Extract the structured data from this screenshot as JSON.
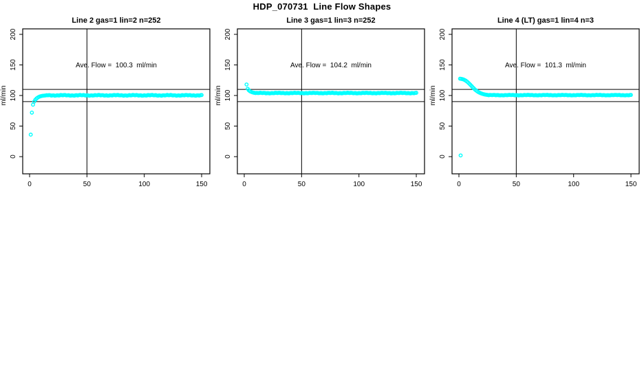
{
  "page": {
    "title": "HDP_070731  Line Flow Shapes",
    "background": "#FFFFFF",
    "text_color": "#000000"
  },
  "chart_data": [
    {
      "type": "scatter",
      "title": "Line 2 gas=1 lin=2 n=252",
      "line": 2,
      "gas": 1,
      "lin": 2,
      "n": 252,
      "ave_flow": 100.3,
      "annotation": "Ave. Flow =  100.3  ml/min",
      "ylabel": "ml/min",
      "xticks": [
        0,
        50,
        100,
        150
      ],
      "yticks": [
        0,
        50,
        100,
        150,
        200
      ],
      "xlim": [
        -6,
        157
      ],
      "ylim": [
        -28,
        209
      ],
      "ref_lines_y": [
        90,
        110
      ],
      "ref_line_x": 50,
      "marker_color": "#00FFFF",
      "transient": [
        [
          1,
          36
        ],
        [
          2,
          72
        ],
        [
          3,
          85
        ],
        [
          4,
          90
        ],
        [
          5,
          93
        ],
        [
          6,
          95
        ],
        [
          7,
          96.5
        ],
        [
          8,
          97.6
        ],
        [
          9,
          98.4
        ],
        [
          10,
          99
        ],
        [
          11,
          99.4
        ],
        [
          12,
          99.7
        ],
        [
          13,
          99.9
        ],
        [
          14,
          100.1
        ]
      ],
      "plateau": {
        "x_from": 15,
        "x_to": 150,
        "value": 100.3,
        "jitter": 0.7
      },
      "outliers": []
    },
    {
      "type": "scatter",
      "title": "Line 3 gas=1 lin=3 n=252",
      "line": 3,
      "gas": 1,
      "lin": 3,
      "n": 252,
      "ave_flow": 104.2,
      "annotation": "Ave. Flow =  104.2  ml/min",
      "ylabel": "ml/min",
      "xticks": [
        0,
        50,
        100,
        150
      ],
      "yticks": [
        0,
        50,
        100,
        150,
        200
      ],
      "xlim": [
        -6,
        157
      ],
      "ylim": [
        -28,
        209
      ],
      "ref_lines_y": [
        90,
        110
      ],
      "ref_line_x": 50,
      "marker_color": "#00FFFF",
      "transient": [
        [
          2,
          118
        ],
        [
          3,
          111
        ],
        [
          4,
          108.5
        ],
        [
          5,
          107
        ],
        [
          6,
          106
        ],
        [
          7,
          105.2
        ],
        [
          8,
          104.7
        ],
        [
          9,
          104.3
        ]
      ],
      "plateau": {
        "x_from": 10,
        "x_to": 150,
        "value": 104,
        "jitter": 0.6
      },
      "outliers": []
    },
    {
      "type": "scatter",
      "title": "Line 4 (LT) gas=1 lin=4 n=3",
      "line": 4,
      "line_note": "LT",
      "gas": 1,
      "lin": 4,
      "n": 3,
      "ave_flow": 101.3,
      "annotation": "Ave. Flow =  101.3  ml/min",
      "ylabel": "ml/min",
      "xticks": [
        0,
        50,
        100,
        150
      ],
      "yticks": [
        0,
        50,
        100,
        150,
        200
      ],
      "xlim": [
        -6,
        157
      ],
      "ylim": [
        -28,
        209
      ],
      "ref_lines_y": [
        90,
        110
      ],
      "ref_line_x": 50,
      "marker_color": "#00FFFF",
      "transient": [
        [
          1,
          127.5
        ],
        [
          2,
          127.2
        ],
        [
          3,
          126.8
        ],
        [
          4,
          126.2
        ],
        [
          5,
          125.3
        ],
        [
          6,
          124.2
        ],
        [
          7,
          122.8
        ],
        [
          8,
          121.2
        ],
        [
          9,
          119.4
        ],
        [
          10,
          117.5
        ],
        [
          11,
          115.5
        ],
        [
          12,
          113.5
        ],
        [
          13,
          111.6
        ],
        [
          14,
          109.8
        ],
        [
          15,
          108.2
        ],
        [
          16,
          106.8
        ],
        [
          17,
          105.6
        ],
        [
          18,
          104.6
        ],
        [
          19,
          103.7
        ],
        [
          20,
          103
        ],
        [
          21,
          102.4
        ],
        [
          22,
          101.9
        ],
        [
          23,
          101.5
        ],
        [
          24,
          101.2
        ],
        [
          25,
          100.9
        ]
      ],
      "plateau": {
        "x_from": 26,
        "x_to": 150,
        "value": 100.6,
        "jitter": 0.5
      },
      "outliers": [
        [
          1.5,
          2
        ]
      ]
    }
  ]
}
